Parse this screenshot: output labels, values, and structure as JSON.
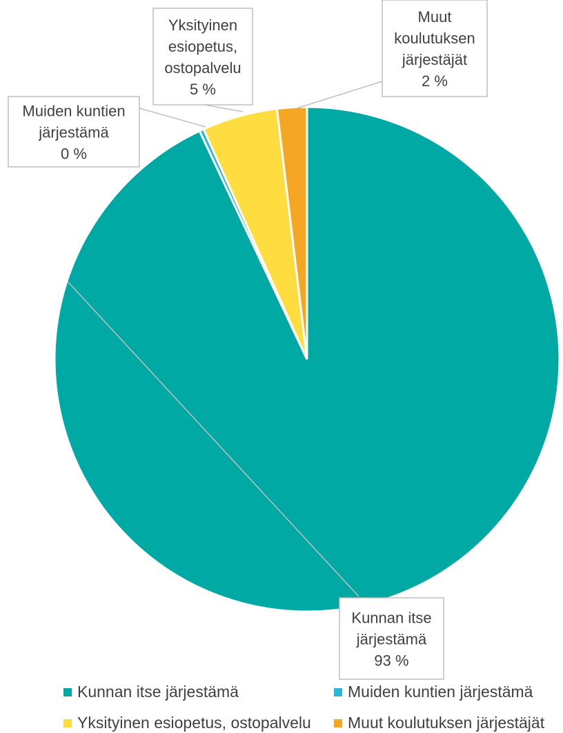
{
  "chart_data": {
    "type": "pie",
    "title": "",
    "categories": [
      "Kunnan itse järjestämä",
      "Muiden kuntien järjestämä",
      "Yksityinen esiopetus, ostopalvelu",
      "Muut koulutuksen järjestäjät"
    ],
    "values": [
      93,
      0,
      5,
      2
    ],
    "labels": [
      {
        "name": "Kunnan itse järjestämä",
        "text": "Kunnan itse järjestämä",
        "pct": "93 %"
      },
      {
        "name": "Muiden kuntien järjestämä",
        "text": "Muiden kuntien järjestämä",
        "pct": "0 %"
      },
      {
        "name": "Yksityinen esiopetus, ostopalvelu",
        "text": "Yksityinen esiopetus, ostopalvelu",
        "pct": "5 %"
      },
      {
        "name": "Muut koulutuksen järjestäjät",
        "text": "Muut koulutuksen järjestäjät",
        "pct": "2 %"
      }
    ],
    "colors": [
      "#00A9A4",
      "#2BB5D6",
      "#FFDC3F",
      "#F5A623"
    ],
    "legend_position": "bottom"
  },
  "legend": [
    {
      "label": "Kunnan itse järjestämä",
      "color": "#00A9A4"
    },
    {
      "label": "Muiden kuntien järjestämä",
      "color": "#2BB5D6"
    },
    {
      "label": "Yksityinen esiopetus, ostopalvelu",
      "color": "#FFDC3F"
    },
    {
      "label": "Muut koulutuksen järjestäjät",
      "color": "#F5A623"
    }
  ]
}
